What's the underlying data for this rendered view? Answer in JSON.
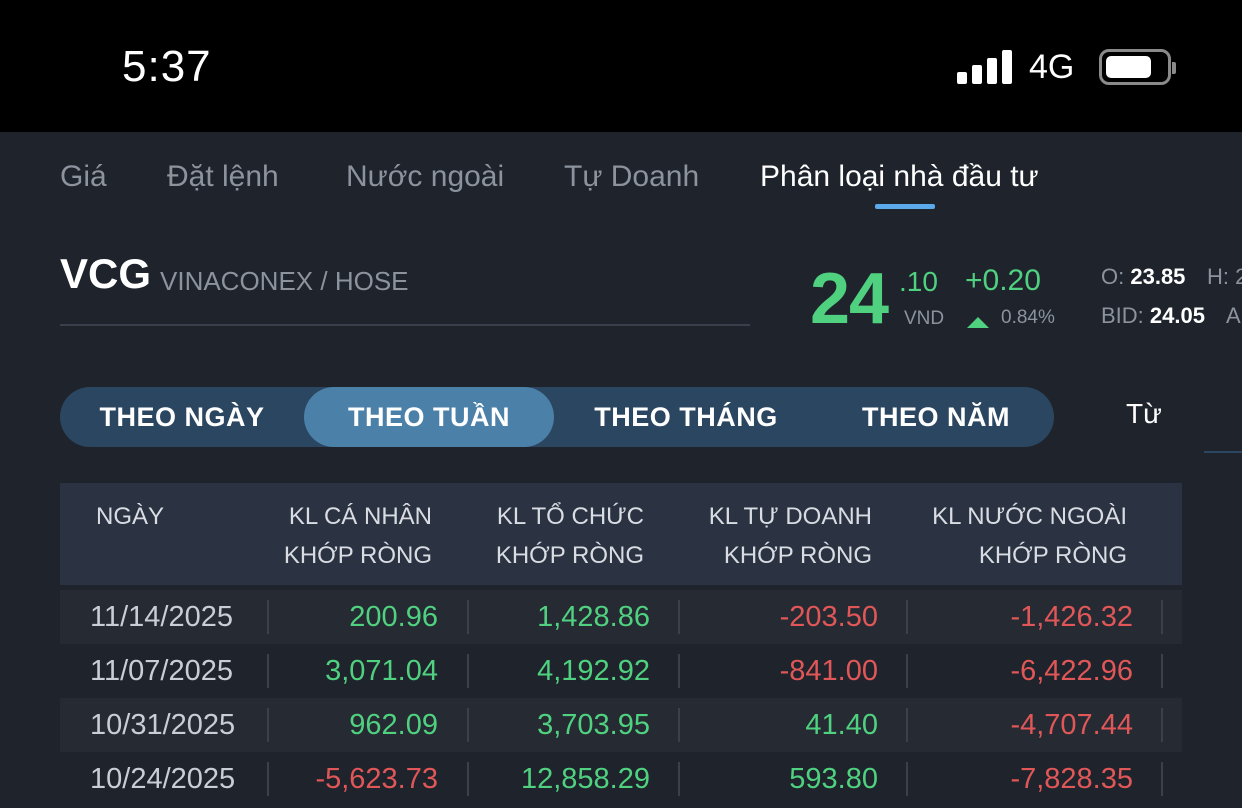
{
  "status_bar": {
    "time": "5:37",
    "network": "4G"
  },
  "tabs": [
    {
      "label": "Giá",
      "active": false
    },
    {
      "label": "Đặt lệnh",
      "active": false
    },
    {
      "label": "Nước ngoài",
      "active": false
    },
    {
      "label": "Tự Doanh",
      "active": false
    },
    {
      "label": "Phân loại nhà đầu tư",
      "active": true
    }
  ],
  "stock": {
    "symbol": "VCG",
    "company": "VINACONEX / HOSE",
    "price_int": "24",
    "price_dec": ".10",
    "unit": "VND",
    "change": "+0.20",
    "change_pct": "0.84%",
    "open_label": "O:",
    "open": "23.85",
    "high_label": "H: 2",
    "bid_label": "BID:",
    "bid": "24.05",
    "ask_label": "A"
  },
  "periods": [
    {
      "label": "THEO NGÀY",
      "active": false
    },
    {
      "label": "THEO TUẦN",
      "active": true
    },
    {
      "label": "THEO THÁNG",
      "active": false
    },
    {
      "label": "THEO NĂM",
      "active": false
    }
  ],
  "from_label": "Từ",
  "table": {
    "headers": [
      {
        "line1": "NGÀY",
        "line2": ""
      },
      {
        "line1": "KL CÁ NHÂN",
        "line2": "KHỚP RÒNG"
      },
      {
        "line1": "KL TỔ CHỨC",
        "line2": "KHỚP RÒNG"
      },
      {
        "line1": "KL TỰ DOANH",
        "line2": "KHỚP RÒNG"
      },
      {
        "line1": "KL NƯỚC NGOÀI",
        "line2": "KHỚP RÒNG"
      }
    ],
    "rows": [
      {
        "date": "11/14/2025",
        "individual": "200.96",
        "institution": "1,428.86",
        "proprietary": "-203.50",
        "foreign": "-1,426.32"
      },
      {
        "date": "11/07/2025",
        "individual": "3,071.04",
        "institution": "4,192.92",
        "proprietary": "-841.00",
        "foreign": "-6,422.96"
      },
      {
        "date": "10/31/2025",
        "individual": "962.09",
        "institution": "3,703.95",
        "proprietary": "41.40",
        "foreign": "-4,707.44"
      },
      {
        "date": "10/24/2025",
        "individual": "-5,623.73",
        "institution": "12,858.29",
        "proprietary": "593.80",
        "foreign": "-7,828.35"
      }
    ]
  },
  "colors": {
    "positive": "#4fd17f",
    "negative": "#e15758",
    "accent": "#5aa9ea",
    "active_period": "#4b80a8"
  }
}
